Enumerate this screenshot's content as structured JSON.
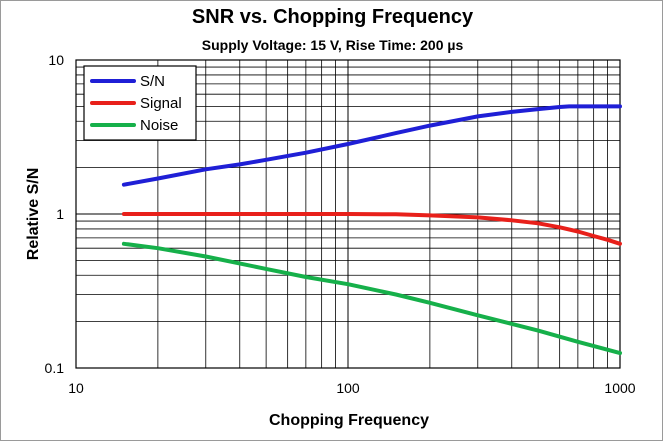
{
  "chart_data": {
    "type": "line",
    "title": "SNR vs. Chopping Frequency",
    "subtitle": "Supply Voltage: 15 V, Rise Time: 200 µs",
    "xlabel": "Chopping Frequency",
    "ylabel": "Relative S/N",
    "xscale": "log",
    "yscale": "log",
    "xlim": [
      10,
      1000
    ],
    "ylim": [
      0.1,
      10
    ],
    "xticks": [
      {
        "value": 10,
        "label": "10"
      },
      {
        "value": 100,
        "label": "100"
      },
      {
        "value": 1000,
        "label": "1000"
      }
    ],
    "yticks": [
      {
        "value": 0.1,
        "label": "0.1"
      },
      {
        "value": 1,
        "label": "1"
      },
      {
        "value": 10,
        "label": "10"
      }
    ],
    "grid": true,
    "legend_position": "top-left",
    "series": [
      {
        "name": "S/N",
        "color": "#1f1fd6",
        "x": [
          15,
          20,
          30,
          40,
          50,
          70,
          100,
          150,
          200,
          300,
          400,
          500,
          600,
          650,
          800,
          1000
        ],
        "y": [
          1.55,
          1.7,
          1.95,
          2.1,
          2.25,
          2.5,
          2.85,
          3.35,
          3.75,
          4.3,
          4.6,
          4.8,
          4.95,
          5.0,
          5.0,
          5.0
        ]
      },
      {
        "name": "Signal",
        "color": "#e8201a",
        "x": [
          15,
          30,
          50,
          100,
          150,
          200,
          300,
          400,
          500,
          600,
          700,
          800,
          900,
          1000
        ],
        "y": [
          1.0,
          1.0,
          1.0,
          1.0,
          0.995,
          0.98,
          0.95,
          0.91,
          0.87,
          0.82,
          0.77,
          0.72,
          0.68,
          0.64
        ]
      },
      {
        "name": "Noise",
        "color": "#16b04a",
        "x": [
          15,
          20,
          30,
          50,
          70,
          100,
          150,
          200,
          300,
          500,
          700,
          1000
        ],
        "y": [
          0.64,
          0.6,
          0.53,
          0.44,
          0.39,
          0.35,
          0.3,
          0.265,
          0.22,
          0.175,
          0.148,
          0.125
        ]
      }
    ]
  }
}
